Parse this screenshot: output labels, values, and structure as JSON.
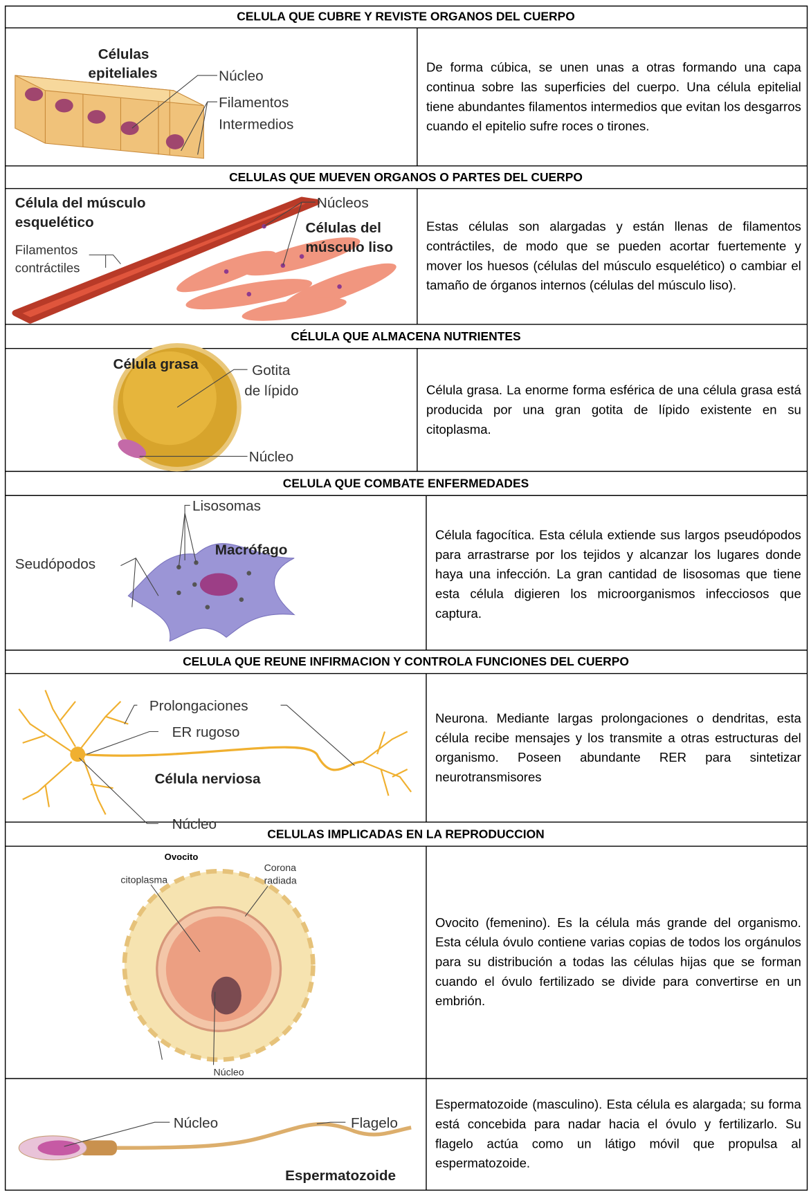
{
  "sections": [
    {
      "title": "CELULA QUE CUBRE Y REVISTE ORGANOS DEL CUERPO",
      "rows": [
        {
          "labels": [
            "Células",
            "epiteliales",
            "Núcleo",
            "Filamentos",
            "Intermedios"
          ],
          "description": "De forma cúbica, se unen unas a otras formando una capa continua sobre las superficies del cuerpo. Una célula epitelial tiene abundantes filamentos intermedios que evitan los desgarros cuando el epitelio sufre roces o tirones."
        }
      ]
    },
    {
      "title": "CELULAS QUE MUEVEN ORGANOS O PARTES DEL CUERPO",
      "rows": [
        {
          "labels": [
            "Célula del músculo",
            "esquelético",
            "Filamentos",
            "contráctiles",
            "Núcleos",
            "Células del",
            "músculo liso"
          ],
          "description": "Estas células son alargadas y están llenas de filamentos contráctiles, de modo que se pueden acortar fuertemente y mover los huesos (células del músculo esquelético) o cambiar el tamaño de órganos internos (células del músculo liso)."
        }
      ]
    },
    {
      "title": "CÉLULA QUE ALMACENA NUTRIENTES",
      "rows": [
        {
          "labels": [
            "Célula grasa",
            "Gotita",
            "de lípido",
            "Núcleo"
          ],
          "description": "Célula grasa. La enorme forma esférica de una célula grasa está producida por una gran gotita de lípido existente en su citoplasma."
        }
      ]
    },
    {
      "title": "CELULA QUE COMBATE ENFERMEDADES",
      "rows": [
        {
          "labels": [
            "Lisosomas",
            "Seudópodos",
            "Macrófago"
          ],
          "description": "Célula fagocítica. Esta célula extiende sus largos pseudópodos para arrastrarse por los tejidos y alcanzar los lugares donde haya una infección. La gran cantidad de lisosomas que tiene esta célula digieren los microorganismos infecciosos que captura."
        }
      ]
    },
    {
      "title": "CELULA QUE REUNE INFIRMACION Y CONTROLA FUNCIONES DEL CUERPO",
      "rows": [
        {
          "labels": [
            "Prolongaciones",
            "ER rugoso",
            "Célula nerviosa",
            "Núcleo"
          ],
          "description": "Neurona. Mediante largas prolongaciones o dendritas, esta célula recibe mensajes y los transmite a otras estructuras del organismo. Poseen abundante RER para sintetizar neurotransmisores"
        }
      ]
    },
    {
      "title": "CELULAS IMPLICADAS EN LA REPRODUCCION",
      "rows": [
        {
          "labels": [
            "Ovocito",
            "citoplasma",
            "Corona",
            "radiada",
            "Núcleo"
          ],
          "description": "Ovocito (femenino). Es la célula más grande del organismo. Esta célula óvulo contiene varias copias de todos los orgánulos para su distribución a todas las células hijas que se forman cuando el óvulo fertilizado se divide para convertirse en un embrión."
        },
        {
          "labels": [
            "Núcleo",
            "Flagelo",
            "Espermatozoide"
          ],
          "description": "Espermatozoide (masculino). Esta célula es alargada; su forma está concebida para nadar hacia el óvulo y fertilizarlo. Su flagelo actúa como un látigo móvil que propulsa al espermatozoide."
        }
      ]
    }
  ]
}
